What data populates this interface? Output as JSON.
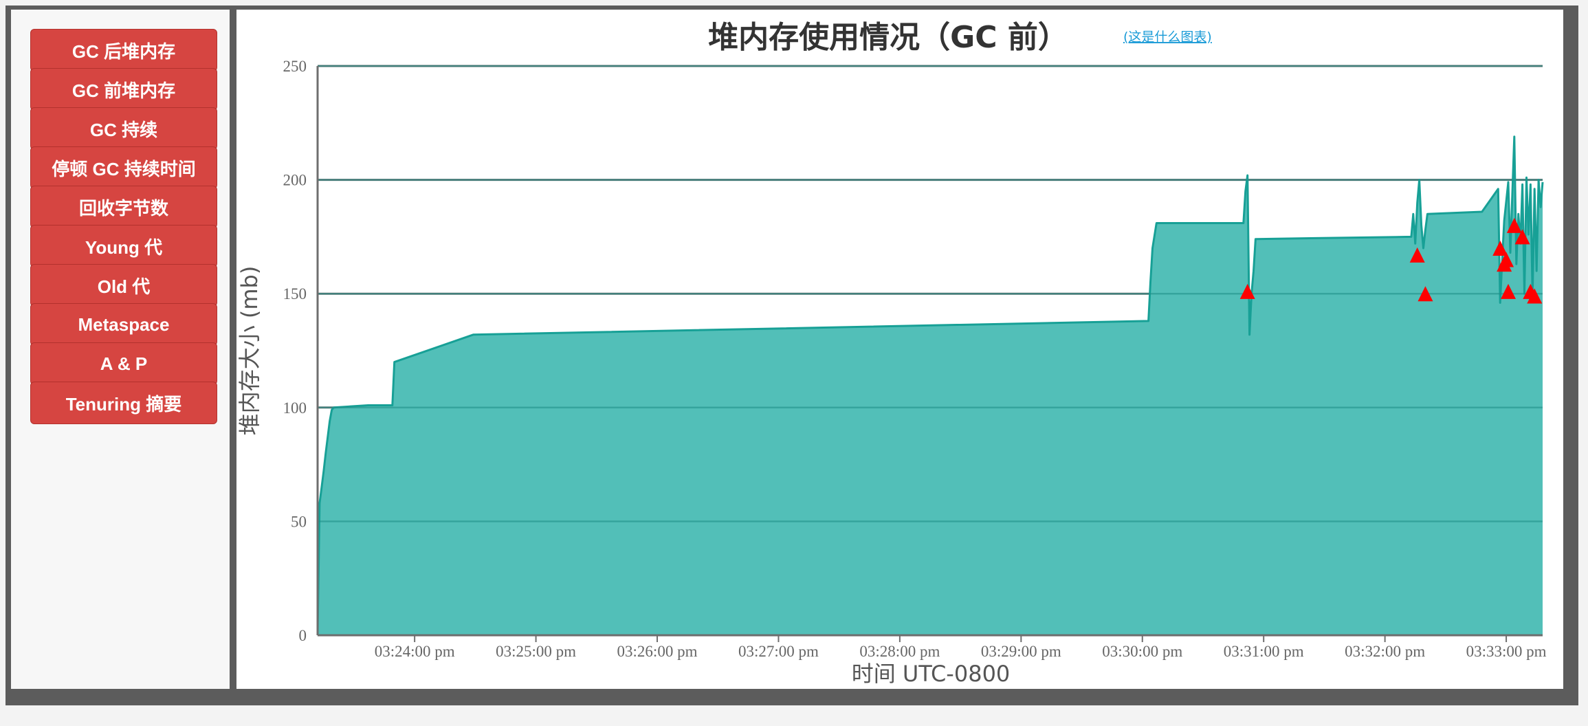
{
  "sidebar": {
    "buttons": [
      {
        "label": "GC 后堆内存"
      },
      {
        "label": "GC 前堆内存"
      },
      {
        "label": "GC 持续"
      },
      {
        "label": "停顿 GC 持续时间"
      },
      {
        "label": "回收字节数"
      },
      {
        "label": "Young 代"
      },
      {
        "label": "Old 代"
      },
      {
        "label": "Metaspace"
      },
      {
        "label": "A & P"
      },
      {
        "label": "Tenuring 摘要"
      }
    ]
  },
  "colors": {
    "button": "#d64541",
    "area_fill": "#52bfb8",
    "area_line": "#17a096",
    "marker": "#ff0000",
    "link": "#1a9bd7",
    "frame": "#5c5c5c"
  },
  "chart_data": {
    "type": "area",
    "title": "堆内存使用情况（GC 前）",
    "help_link": "(这是什么图表)",
    "xlabel": "时间 UTC-0800",
    "ylabel": "堆内存大小 (mb)",
    "xlim": [
      "03:23:12 pm",
      "03:33:18 pm"
    ],
    "ylim": [
      0,
      250
    ],
    "y_ticks": [
      0,
      50,
      100,
      150,
      200,
      250
    ],
    "x_ticks": [
      "03:24:00 pm",
      "03:25:00 pm",
      "03:26:00 pm",
      "03:27:00 pm",
      "03:28:00 pm",
      "03:29:00 pm",
      "03:30:00 pm",
      "03:31:00 pm",
      "03:32:00 pm",
      "03:33:00 pm"
    ],
    "grid": true,
    "series": [
      {
        "values": [
          [
            "03:23:12 pm",
            0
          ],
          [
            "03:23:13 pm",
            58
          ],
          [
            "03:23:14 pm",
            65
          ],
          [
            "03:23:15 pm",
            72
          ],
          [
            "03:23:16 pm",
            80
          ],
          [
            "03:23:17 pm",
            87
          ],
          [
            "03:23:18 pm",
            94
          ],
          [
            "03:23:19 pm",
            99
          ],
          [
            "03:23:20 pm",
            100
          ],
          [
            "03:23:37 pm",
            101
          ],
          [
            "03:23:49 pm",
            101
          ],
          [
            "03:23:50 pm",
            120
          ],
          [
            "03:24:29 pm",
            132
          ],
          [
            "03:30:03 pm",
            138
          ],
          [
            "03:30:04 pm",
            155
          ],
          [
            "03:30:05 pm",
            170
          ],
          [
            "03:30:07 pm",
            181
          ],
          [
            "03:30:50 pm",
            181
          ],
          [
            "03:30:51 pm",
            195
          ],
          [
            "03:30:52 pm",
            202
          ],
          [
            "03:30:53 pm",
            132
          ],
          [
            "03:30:54 pm",
            150
          ],
          [
            "03:30:55 pm",
            160
          ],
          [
            "03:30:56 pm",
            174
          ],
          [
            "03:32:13 pm",
            175
          ],
          [
            "03:32:14 pm",
            185
          ],
          [
            "03:32:15 pm",
            172
          ],
          [
            "03:32:16 pm",
            190
          ],
          [
            "03:32:17 pm",
            200
          ],
          [
            "03:32:18 pm",
            180
          ],
          [
            "03:32:19 pm",
            170
          ],
          [
            "03:32:20 pm",
            178
          ],
          [
            "03:32:21 pm",
            185
          ],
          [
            "03:32:48 pm",
            186
          ],
          [
            "03:32:56 pm",
            196
          ],
          [
            "03:32:57 pm",
            146
          ],
          [
            "03:32:58 pm",
            165
          ],
          [
            "03:32:59 pm",
            182
          ],
          [
            "03:33:01 pm",
            199
          ],
          [
            "03:33:02 pm",
            168
          ],
          [
            "03:33:04 pm",
            219
          ],
          [
            "03:33:05 pm",
            163
          ],
          [
            "03:33:06 pm",
            185
          ],
          [
            "03:33:07 pm",
            172
          ],
          [
            "03:33:08 pm",
            198
          ],
          [
            "03:33:09 pm",
            150
          ],
          [
            "03:33:10 pm",
            201
          ],
          [
            "03:33:11 pm",
            176
          ],
          [
            "03:33:12 pm",
            198
          ],
          [
            "03:33:13 pm",
            149
          ],
          [
            "03:33:14 pm",
            196
          ],
          [
            "03:33:15 pm",
            160
          ],
          [
            "03:33:16 pm",
            200
          ],
          [
            "03:33:17 pm",
            188
          ],
          [
            "03:33:18 pm",
            199
          ]
        ]
      }
    ],
    "markers": [
      [
        "03:30:52 pm",
        151
      ],
      [
        "03:32:16 pm",
        167
      ],
      [
        "03:32:20 pm",
        150
      ],
      [
        "03:32:57 pm",
        170
      ],
      [
        "03:32:59 pm",
        163
      ],
      [
        "03:33:00 pm",
        165
      ],
      [
        "03:33:01 pm",
        151
      ],
      [
        "03:33:04 pm",
        180
      ],
      [
        "03:33:08 pm",
        175
      ],
      [
        "03:33:12 pm",
        151
      ],
      [
        "03:33:14 pm",
        149
      ]
    ]
  }
}
